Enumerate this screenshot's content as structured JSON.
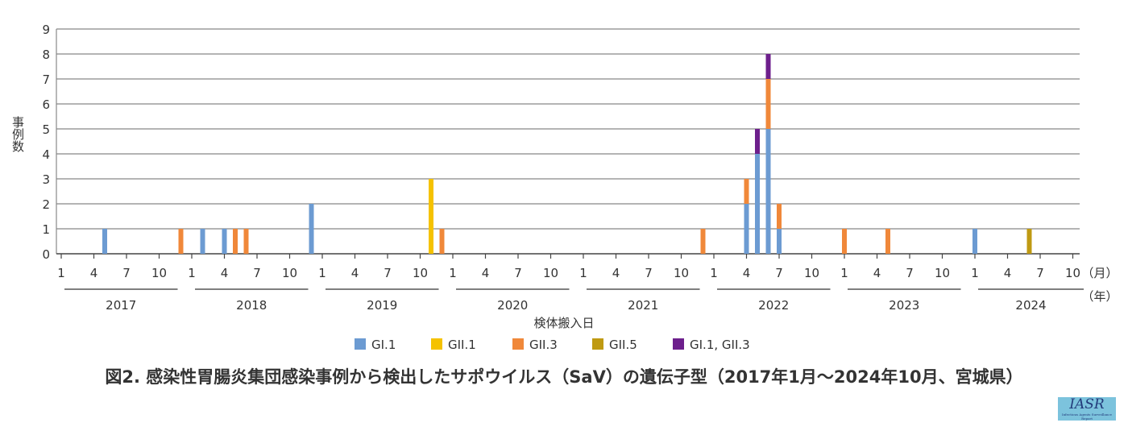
{
  "chart_data": {
    "type": "bar",
    "stacked": true,
    "title": "図2. 感染性胃腸炎集団感染事例から検出したサポウイルス（SaV）の遺伝子型（2017年1月〜2024年10月、宮城県）",
    "xlabel": "検体搬入日",
    "ylabel": "事例数",
    "ylim": [
      0,
      9
    ],
    "yticks": [
      0,
      1,
      2,
      3,
      4,
      5,
      6,
      7,
      8,
      9
    ],
    "x_month_ticks": [
      "1",
      "4",
      "7",
      "10"
    ],
    "month_unit": "（月）",
    "year_unit": "（年）",
    "years": [
      "2017",
      "2018",
      "2019",
      "2020",
      "2021",
      "2022",
      "2023",
      "2024"
    ],
    "x_range": [
      "2017-01",
      "2024-10"
    ],
    "legend_position": "bottom",
    "series": [
      {
        "name": "GI.1",
        "color": "#6c9bd2"
      },
      {
        "name": "GII.1",
        "color": "#f5c200"
      },
      {
        "name": "GII.3",
        "color": "#f0883a"
      },
      {
        "name": "GII.5",
        "color": "#bf9a12"
      },
      {
        "name": "GI.1, GII.3",
        "color": "#6d1f8c"
      }
    ],
    "data": [
      {
        "month": "2017-05",
        "GI.1": 1
      },
      {
        "month": "2017-12",
        "GII.3": 1
      },
      {
        "month": "2018-02",
        "GI.1": 1
      },
      {
        "month": "2018-04",
        "GI.1": 1
      },
      {
        "month": "2018-05",
        "GII.3": 1
      },
      {
        "month": "2018-06",
        "GII.3": 1
      },
      {
        "month": "2018-12",
        "GI.1": 2
      },
      {
        "month": "2019-11",
        "GII.1": 3
      },
      {
        "month": "2019-12",
        "GII.3": 1
      },
      {
        "month": "2021-12",
        "GII.3": 1
      },
      {
        "month": "2022-04",
        "GI.1": 2,
        "GII.3": 1
      },
      {
        "month": "2022-05",
        "GI.1": 4,
        "GI.1, GII.3": 1
      },
      {
        "month": "2022-06",
        "GI.1": 5,
        "GII.3": 2,
        "GI.1, GII.3": 1
      },
      {
        "month": "2022-07",
        "GI.1": 1,
        "GII.3": 1
      },
      {
        "month": "2023-01",
        "GII.3": 1
      },
      {
        "month": "2023-05",
        "GII.3": 1
      },
      {
        "month": "2024-01",
        "GI.1": 1
      },
      {
        "month": "2024-06",
        "GII.5": 1
      }
    ]
  },
  "logo": {
    "text": "IASR",
    "subtext": "Infectious Agents Surveillance Report"
  }
}
